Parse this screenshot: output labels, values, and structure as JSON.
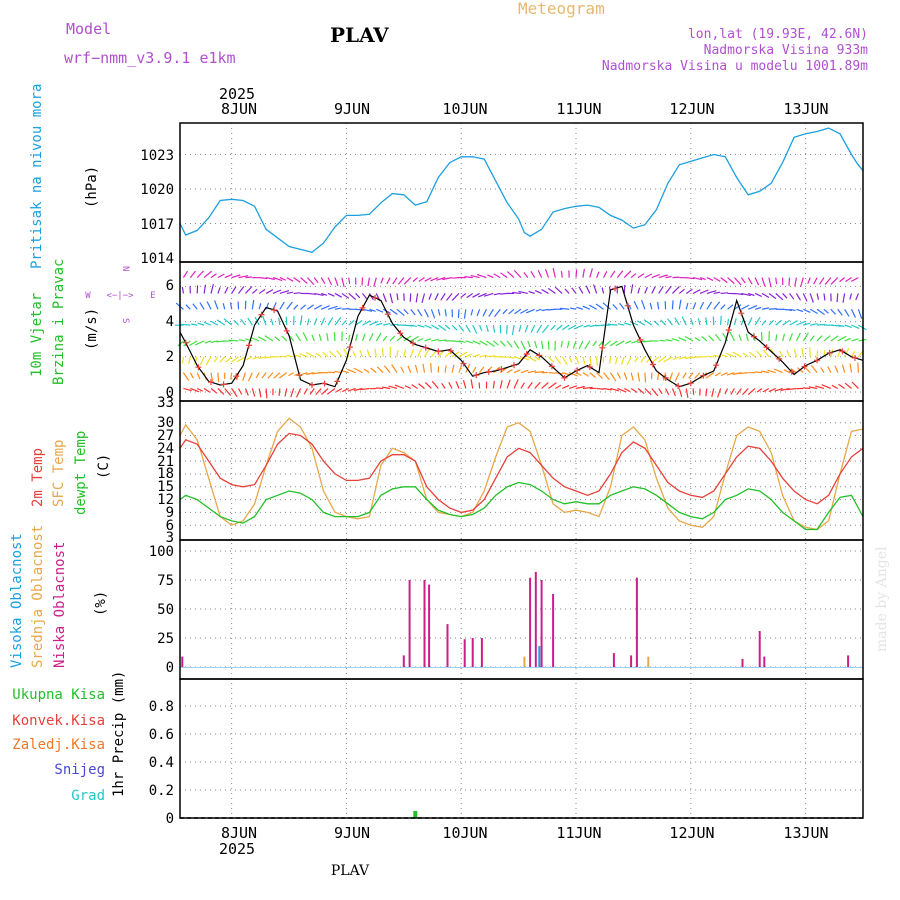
{
  "header": {
    "model_label": "Model",
    "model_name": "wrf−nmm_v3.9.1  e1km",
    "station": "PLAV",
    "meteogram_title": "Meteogram",
    "coords": "lon,lat (19.93E, 42.6N)",
    "elevation": "Nadmorska Visina 933m",
    "model_elevation": "Nadmorska Visina u modelu 1001.89m",
    "footer_station": "PLAV",
    "watermark": "made by Angel",
    "top_year": "2025",
    "bottom_year": "2025"
  },
  "colors": {
    "pressure": "#1ca0e0",
    "temp2m": "#e8403a",
    "sfc_temp": "#e6a84a",
    "dewpoint": "#22c02a",
    "high_cloud": "#1ca0e0",
    "mid_cloud": "#e6a84a",
    "low_cloud": "#cc1e8a",
    "precip": "#22c02a",
    "axis_purple": "#b050d0"
  },
  "chart_data": [
    {
      "type": "line",
      "id": "pressure",
      "ylabel_left": "Pritisak na nivou mora",
      "ylabel_unit": "(hPa)",
      "x_ticks": [
        "8JUN",
        "9JUN",
        "10JUN",
        "11JUN",
        "12JUN",
        "13JUN"
      ],
      "x_range_days": [
        7.55,
        13.5
      ],
      "ylim": [
        1014,
        1026
      ],
      "yticks": [
        "1014",
        "1017",
        "1020",
        "1023"
      ],
      "grid": true,
      "series": [
        {
          "name": "",
          "x": [
            7.55,
            7.6,
            7.7,
            7.8,
            7.9,
            8.0,
            8.1,
            8.2,
            8.3,
            8.5,
            8.7,
            8.8,
            8.9,
            9.0,
            9.1,
            9.2,
            9.3,
            9.4,
            9.5,
            9.6,
            9.7,
            9.8,
            9.9,
            10.0,
            10.1,
            10.2,
            10.3,
            10.4,
            10.5,
            10.55,
            10.6,
            10.7,
            10.8,
            10.9,
            11.0,
            11.1,
            11.2,
            11.3,
            11.4,
            11.5,
            11.6,
            11.7,
            11.8,
            11.9,
            12.0,
            12.1,
            12.2,
            12.3,
            12.4,
            12.5,
            12.6,
            12.7,
            12.8,
            12.9,
            13.0,
            13.1,
            13.2,
            13.3,
            13.4,
            13.45,
            13.5
          ],
          "values": [
            1017,
            1016,
            1016.4,
            1017.5,
            1019,
            1019.1,
            1019,
            1018.5,
            1016.5,
            1015,
            1014.5,
            1015.3,
            1016.7,
            1017.7,
            1017.7,
            1017.8,
            1018.8,
            1019.6,
            1019.5,
            1018.6,
            1018.9,
            1021,
            1022.3,
            1022.8,
            1022.8,
            1022.6,
            1020.7,
            1018.8,
            1017.4,
            1016.2,
            1015.9,
            1016.5,
            1018,
            1018.3,
            1018.5,
            1018.6,
            1018.4,
            1017.7,
            1017.3,
            1016.6,
            1016.9,
            1018.2,
            1020.5,
            1022.1,
            1022.4,
            1022.7,
            1023,
            1022.8,
            1021,
            1019.5,
            1019.8,
            1020.5,
            1022.3,
            1024.5,
            1024.8,
            1025,
            1025.3,
            1024.8,
            1023,
            1022.2,
            1021.6
          ]
        }
      ]
    },
    {
      "type": "line",
      "id": "wind",
      "ylabel_left_1": "10m Vjetar",
      "ylabel_left_2": "Brzina i Pravac",
      "ylabel_unit": "(m/s)",
      "compass": {
        "n": "N",
        "s": "S",
        "e": "E",
        "w": "W",
        "sep": "<−|−>"
      },
      "ylim": [
        -0.5,
        7.3
      ],
      "yticks": [
        "0",
        "2",
        "4",
        "6"
      ],
      "grid": true,
      "series": [
        {
          "name": "",
          "x": [
            7.55,
            7.6,
            7.7,
            7.8,
            7.9,
            8.0,
            8.1,
            8.2,
            8.3,
            8.4,
            8.5,
            8.6,
            8.7,
            8.8,
            8.9,
            9.0,
            9.1,
            9.2,
            9.3,
            9.4,
            9.5,
            9.6,
            9.7,
            9.8,
            9.9,
            10.0,
            10.1,
            10.2,
            10.3,
            10.4,
            10.5,
            10.6,
            10.7,
            10.8,
            10.9,
            11.0,
            11.1,
            11.2,
            11.3,
            11.4,
            11.5,
            11.6,
            11.7,
            11.8,
            11.9,
            12.0,
            12.1,
            12.2,
            12.3,
            12.4,
            12.5,
            12.6,
            12.7,
            12.8,
            12.9,
            13.0,
            13.1,
            13.2,
            13.3,
            13.4,
            13.5
          ],
          "values": [
            3.4,
            2.8,
            1.5,
            0.6,
            0.4,
            0.5,
            1.5,
            3.8,
            4.8,
            4.6,
            3.2,
            0.7,
            0.4,
            0.5,
            0.3,
            1.8,
            4.3,
            5.5,
            5.2,
            3.9,
            3.1,
            2.7,
            2.5,
            2.3,
            2.4,
            1.8,
            0.9,
            1.1,
            1.2,
            1.4,
            1.6,
            2.4,
            2.0,
            1.4,
            0.8,
            1.2,
            1.5,
            1.1,
            5.8,
            6.0,
            3.8,
            2.4,
            1.2,
            0.7,
            0.3,
            0.5,
            0.9,
            1.2,
            2.8,
            5.2,
            3.4,
            2.9,
            2.3,
            1.7,
            1.0,
            1.5,
            1.8,
            2.2,
            2.4,
            2.0,
            1.8
          ]
        }
      ]
    },
    {
      "type": "line",
      "id": "temperature",
      "ylabel_1": "2m Temp",
      "ylabel_2": "SFC Temp",
      "ylabel_3": "dewpt Temp",
      "ylabel_unit": "(C)",
      "ylim": [
        3,
        33
      ],
      "yticks": [
        "3",
        "6",
        "9",
        "12",
        "15",
        "18",
        "21",
        "24",
        "27",
        "30",
        "33"
      ],
      "grid": true,
      "series": [
        {
          "name": "2m Temp",
          "x": [
            7.55,
            7.6,
            7.7,
            7.8,
            7.9,
            8.0,
            8.1,
            8.2,
            8.3,
            8.4,
            8.5,
            8.6,
            8.7,
            8.8,
            8.9,
            9.0,
            9.1,
            9.2,
            9.3,
            9.4,
            9.5,
            9.6,
            9.7,
            9.8,
            9.9,
            10.0,
            10.1,
            10.2,
            10.3,
            10.4,
            10.5,
            10.6,
            10.7,
            10.8,
            10.9,
            11.0,
            11.1,
            11.2,
            11.3,
            11.4,
            11.5,
            11.6,
            11.7,
            11.8,
            11.9,
            12.0,
            12.1,
            12.2,
            12.3,
            12.4,
            12.5,
            12.6,
            12.7,
            12.8,
            12.9,
            13.0,
            13.1,
            13.2,
            13.3,
            13.4,
            13.5
          ],
          "values": [
            24,
            26,
            25,
            21,
            17,
            15.5,
            15,
            15.5,
            20,
            25,
            27.5,
            27,
            25,
            21,
            18,
            16.5,
            16.5,
            17,
            21,
            22.5,
            22.5,
            21,
            15,
            12,
            10,
            9,
            9.5,
            12,
            17,
            22,
            24,
            23,
            20,
            17,
            15,
            14,
            13,
            14,
            18,
            23,
            25.5,
            24,
            20,
            16,
            14,
            13,
            12.5,
            14,
            18,
            22,
            24.5,
            24,
            21,
            17,
            14,
            12,
            11,
            13,
            18,
            22,
            24
          ]
        },
        {
          "name": "SFC Temp",
          "x": [
            7.55,
            7.6,
            7.7,
            7.8,
            7.9,
            8.0,
            8.1,
            8.2,
            8.3,
            8.4,
            8.5,
            8.6,
            8.7,
            8.8,
            8.9,
            9.0,
            9.1,
            9.2,
            9.3,
            9.4,
            9.5,
            9.6,
            9.7,
            9.8,
            9.9,
            10.0,
            10.1,
            10.2,
            10.3,
            10.4,
            10.5,
            10.6,
            10.7,
            10.8,
            10.9,
            11.0,
            11.1,
            11.2,
            11.3,
            11.4,
            11.5,
            11.6,
            11.7,
            11.8,
            11.9,
            12.0,
            12.1,
            12.2,
            12.3,
            12.4,
            12.5,
            12.6,
            12.7,
            12.8,
            12.9,
            13.0,
            13.1,
            13.2,
            13.3,
            13.4,
            13.5
          ],
          "values": [
            27,
            29.5,
            26,
            17,
            8,
            6,
            7,
            11,
            20,
            28,
            31,
            29,
            24,
            14,
            9,
            8,
            7.5,
            8,
            20,
            24,
            23,
            21,
            12,
            9,
            8.5,
            8,
            9,
            14,
            22,
            29,
            30,
            28,
            20,
            11,
            9,
            9.5,
            9,
            8,
            15,
            27,
            29,
            26,
            17,
            10,
            7,
            6,
            5.5,
            8,
            18,
            27,
            29,
            28,
            23,
            13,
            7,
            5.5,
            5,
            7,
            18,
            28,
            28.5
          ]
        },
        {
          "name": "dewpt Temp",
          "x": [
            7.55,
            7.6,
            7.7,
            7.8,
            7.9,
            8.0,
            8.1,
            8.2,
            8.3,
            8.4,
            8.5,
            8.6,
            8.7,
            8.8,
            8.9,
            9.0,
            9.1,
            9.2,
            9.3,
            9.4,
            9.5,
            9.6,
            9.7,
            9.8,
            9.9,
            10.0,
            10.1,
            10.2,
            10.3,
            10.4,
            10.5,
            10.6,
            10.7,
            10.8,
            10.9,
            11.0,
            11.1,
            11.2,
            11.3,
            11.4,
            11.5,
            11.6,
            11.7,
            11.8,
            11.9,
            12.0,
            12.1,
            12.2,
            12.3,
            12.4,
            12.5,
            12.6,
            12.7,
            12.8,
            12.9,
            13.0,
            13.1,
            13.2,
            13.3,
            13.4,
            13.5
          ],
          "values": [
            12,
            13,
            12,
            10,
            8,
            7,
            6.5,
            8,
            12,
            13,
            14,
            13.5,
            12,
            9,
            8,
            8,
            8,
            9,
            13,
            14.5,
            15,
            15,
            12,
            9.5,
            8.5,
            8,
            8.5,
            10,
            13,
            15,
            16,
            15.5,
            14,
            12,
            11,
            11.5,
            11,
            11,
            13,
            14,
            15,
            14.5,
            13,
            11,
            9,
            8,
            7.5,
            9,
            12,
            13,
            14.5,
            14,
            12,
            9,
            7,
            5,
            5,
            9,
            12.5,
            13,
            8
          ]
        }
      ]
    },
    {
      "type": "bar",
      "id": "clouds",
      "ylabel_1": "Visoka Oblacnost",
      "ylabel_2": "Srednja Oblacnost",
      "ylabel_3": "Niska Oblacnost",
      "ylabel_unit": "(%)",
      "ylim": [
        0,
        105
      ],
      "yticks": [
        "0",
        "25",
        "50",
        "75",
        "100"
      ],
      "grid": true,
      "series": [
        {
          "name": "Niska Oblacnost",
          "x": [
            7.57,
            9.5,
            9.55,
            9.68,
            9.72,
            9.88,
            10.03,
            10.1,
            10.18,
            10.6,
            10.65,
            10.7,
            10.8,
            11.33,
            11.48,
            11.53,
            12.45,
            12.6,
            12.64,
            13.37
          ],
          "values": [
            9,
            10,
            75,
            75,
            71,
            37,
            24,
            25,
            25,
            77,
            82,
            75,
            63,
            12,
            10,
            77,
            7,
            31,
            9,
            10
          ]
        },
        {
          "name": "Srednja Oblacnost",
          "x": [
            10.55,
            11.63
          ],
          "values": [
            9,
            9
          ]
        },
        {
          "name": "Visoka Oblacnost",
          "x": [
            10.68
          ],
          "values": [
            18
          ]
        }
      ]
    },
    {
      "type": "bar",
      "id": "precip",
      "legend": [
        "Ukupna  Kisa",
        "Konvek.Kisa",
        "Zaledj.Kisa",
        "Snijeg",
        "Grad"
      ],
      "legend_colors": [
        "#22c02a",
        "#e8403a",
        "#f0782a",
        "#4848d8",
        "#22c8c8"
      ],
      "ylabel_unit": "1hr Precip (mm)",
      "ylim": [
        0,
        1.0
      ],
      "yticks": [
        "0",
        "0.2",
        "0.4",
        "0.6",
        "0.8"
      ],
      "grid": true,
      "series": [
        {
          "name": "Ukupna  Kisa",
          "x": [
            9.6
          ],
          "values": [
            0.05
          ]
        }
      ]
    }
  ]
}
